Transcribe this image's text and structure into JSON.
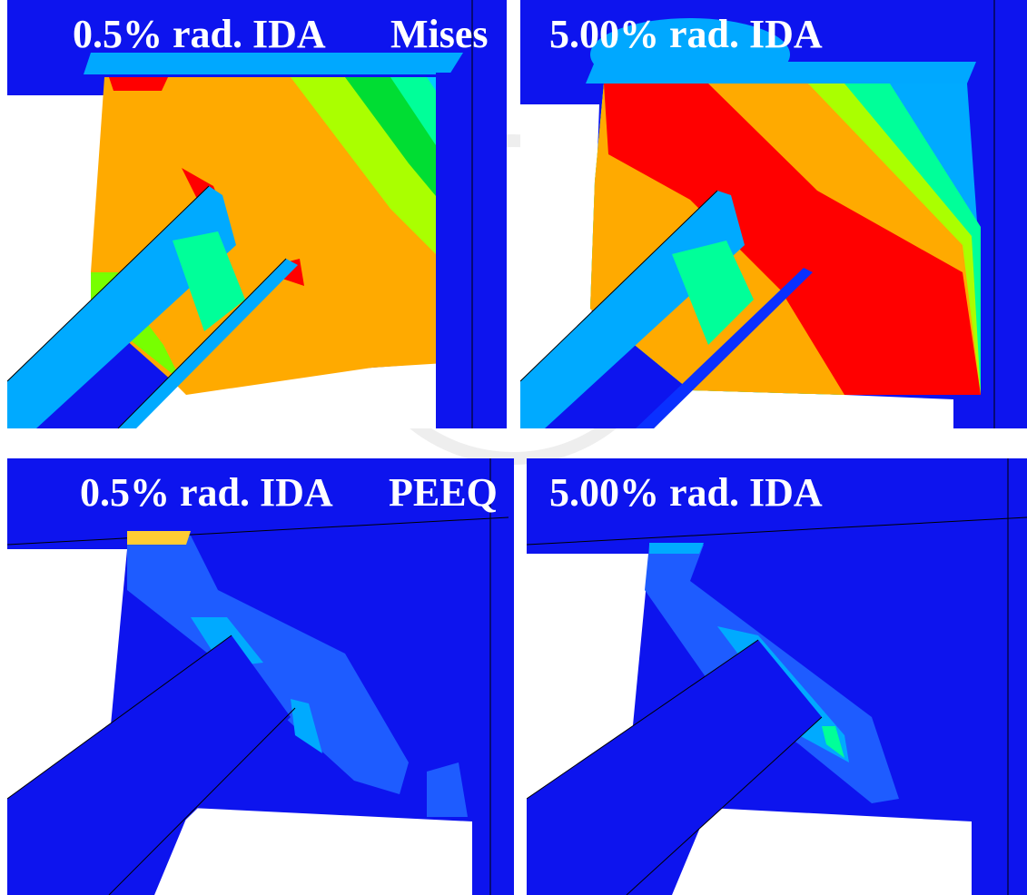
{
  "panels": [
    {
      "label": "0.5% rad. IDA",
      "quantity": "Mises"
    },
    {
      "label": "5.00% rad. IDA"
    },
    {
      "label": "0.5% rad. IDA",
      "quantity": "PEEQ"
    },
    {
      "label": "5.00% rad. IDA"
    }
  ]
}
